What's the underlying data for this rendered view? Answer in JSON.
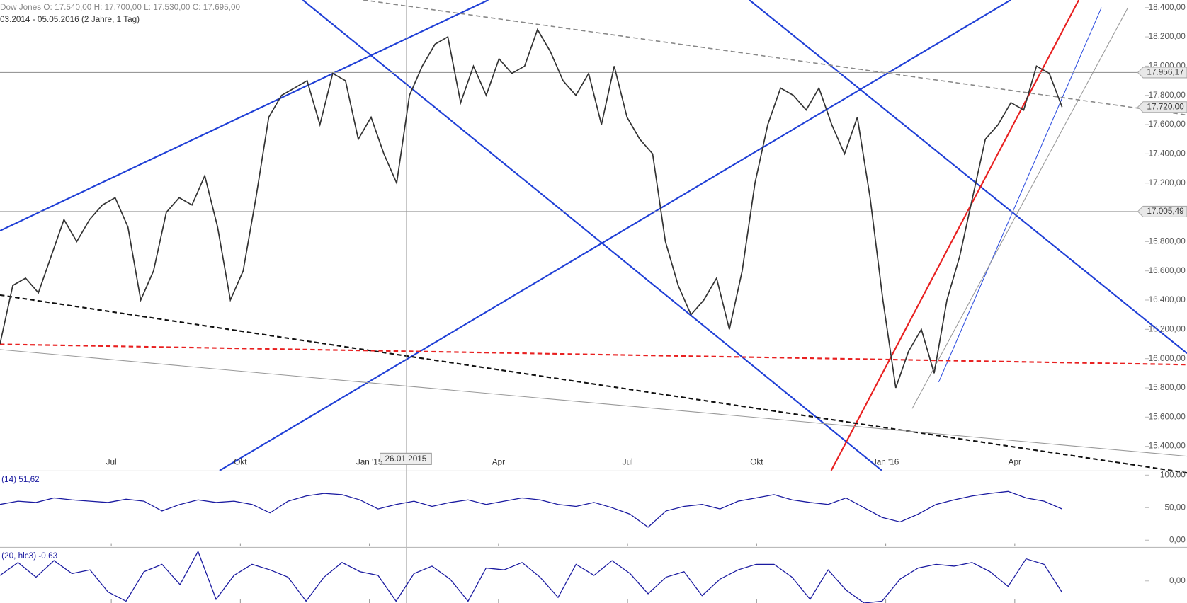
{
  "header": {
    "quote": "Dow Jones   O: 17.540,00   H: 17.700,00   L: 17.530,00   C: 17.695,00",
    "range": "03.2014 - 05.05.2016 (2 Jahre, 1 Tag)",
    "crosshair_date": "26.01.2015"
  },
  "chart_data": [
    {
      "type": "line",
      "title": "Dow Jones",
      "color": "#333333",
      "x_labels": [
        "Jul",
        "Okt",
        "Jan '15",
        "Apr",
        "Jul",
        "Okt",
        "Jan '16",
        "Apr"
      ],
      "values": [
        16100,
        16500,
        16550,
        16450,
        16700,
        16950,
        16800,
        16950,
        17050,
        17100,
        16900,
        16400,
        16600,
        17000,
        17100,
        17050,
        17250,
        16900,
        16400,
        16600,
        17100,
        17650,
        17800,
        17850,
        17900,
        17600,
        17950,
        17900,
        17500,
        17650,
        17400,
        17200,
        17800,
        18000,
        18150,
        18200,
        17750,
        18000,
        17800,
        18050,
        17950,
        18000,
        18250,
        18100,
        17900,
        17800,
        17950,
        17600,
        18000,
        17650,
        17500,
        17400,
        16800,
        16500,
        16300,
        16400,
        16550,
        16200,
        16600,
        17200,
        17600,
        17850,
        17800,
        17700,
        17850,
        17600,
        17400,
        17650,
        17100,
        16400,
        15800,
        16050,
        16200,
        15900,
        16400,
        16700,
        17100,
        17500,
        17600,
        17750,
        17700,
        18000,
        17950,
        17720
      ],
      "ylim": [
        15234,
        18452
      ],
      "yticks": [
        {
          "value": 15400,
          "label": "15.400,00"
        },
        {
          "value": 15600,
          "label": "15.600,00"
        },
        {
          "value": 15800,
          "label": "15.800,00"
        },
        {
          "value": 16000,
          "label": "16.000,00"
        },
        {
          "value": 16200,
          "label": "16.200,00"
        },
        {
          "value": 16400,
          "label": "16.400,00"
        },
        {
          "value": 16600,
          "label": "16.600,00"
        },
        {
          "value": 16800,
          "label": "16.800,00"
        },
        {
          "value": 17000,
          "label": "17.000,00"
        },
        {
          "value": 17200,
          "label": "17.200,00"
        },
        {
          "value": 17400,
          "label": "17.400,00"
        },
        {
          "value": 17600,
          "label": "17.600,00"
        },
        {
          "value": 17800,
          "label": "17.800,00"
        },
        {
          "value": 18000,
          "label": "18.000,00"
        },
        {
          "value": 18200,
          "label": "18.200,00"
        },
        {
          "value": 18400,
          "label": "18.400,00"
        }
      ],
      "levels": [
        {
          "value": 17956.17,
          "label": "17.956,17"
        },
        {
          "value": 17005.49,
          "label": "17.005,49"
        },
        {
          "value": 17720,
          "label": "17.720,00"
        }
      ]
    },
    {
      "type": "line",
      "title": "(14)  51,62",
      "color": "#1a1aa0",
      "values": [
        55,
        60,
        58,
        65,
        62,
        60,
        58,
        63,
        60,
        45,
        55,
        62,
        58,
        60,
        55,
        42,
        60,
        68,
        72,
        70,
        62,
        48,
        55,
        60,
        52,
        58,
        62,
        55,
        60,
        65,
        62,
        55,
        52,
        58,
        50,
        40,
        20,
        45,
        52,
        55,
        48,
        60,
        65,
        70,
        62,
        58,
        55,
        65,
        50,
        35,
        28,
        40,
        55,
        62,
        68,
        72,
        75,
        65,
        60,
        48
      ],
      "ylim": [
        -9.3,
        105.8
      ],
      "yticks": [
        {
          "value": 0,
          "label": "0,00"
        },
        {
          "value": 50,
          "label": "50,00"
        },
        {
          "value": 100,
          "label": "100,00"
        }
      ]
    },
    {
      "type": "line",
      "title": "(20, hlc3)  -0,63",
      "color": "#1a1aa0",
      "values": [
        0.3,
        1.0,
        0.2,
        1.1,
        0.4,
        0.6,
        -0.6,
        -1.1,
        0.5,
        0.9,
        -0.2,
        1.6,
        -1.0,
        0.3,
        0.9,
        0.6,
        0.2,
        -1.1,
        0.2,
        1.0,
        0.5,
        0.3,
        -1.1,
        0.4,
        0.8,
        0.1,
        -1.1,
        0.7,
        0.6,
        1.0,
        0.2,
        -0.9,
        0.9,
        0.3,
        1.1,
        0.4,
        -0.7,
        0.2,
        0.5,
        -0.8,
        0.1,
        0.6,
        0.9,
        0.9,
        0.2,
        -1.0,
        0.6,
        -0.5,
        -1.2,
        -1.1,
        0.1,
        0.7,
        0.9,
        0.8,
        1.0,
        0.5,
        -0.3,
        1.2,
        0.9,
        -0.63
      ],
      "ylim": [
        -1.2,
        1.8
      ],
      "yticks": [
        {
          "value": 0,
          "label": "0,00"
        }
      ]
    }
  ]
}
